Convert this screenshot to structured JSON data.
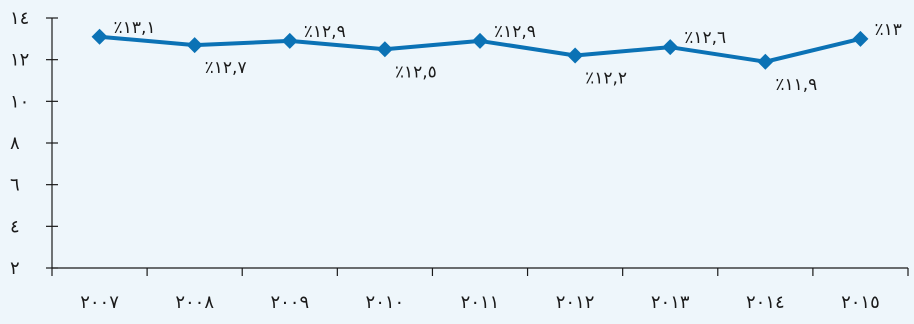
{
  "chart_data": {
    "type": "line",
    "title": "",
    "xlabel": "",
    "ylabel": "",
    "categories": [
      "٢٠٠٧",
      "٢٠٠٨",
      "٢٠٠٩",
      "٢٠١٠",
      "٢٠١١",
      "٢٠١٢",
      "٢٠١٣",
      "٢٠١٤",
      "٢٠١٥"
    ],
    "series": [
      {
        "values": [
          13.1,
          12.7,
          12.9,
          12.5,
          12.9,
          12.2,
          12.6,
          11.9,
          13.0
        ],
        "data_labels": [
          "٪١٣,١",
          "٪١٢,٧",
          "٪١٢,٩",
          "٪١٢,٥",
          "٪١٢,٩",
          "٪١٢,٢",
          "٪١٢,٦",
          "٪١١,٩",
          "٪١٣"
        ],
        "color": "#0b72b5"
      }
    ],
    "y_ticks": [
      2,
      4,
      6,
      8,
      10,
      12,
      14
    ],
    "y_tick_labels": [
      "٢",
      "٤",
      "٦",
      "٨",
      "١٠",
      "١٢",
      "١٤"
    ],
    "ylim": [
      2,
      14
    ],
    "grid": false,
    "legend": "none",
    "colors": {
      "line": "#0b72b5",
      "axis": "#1a1a1a",
      "background": "#eef6fb"
    }
  }
}
